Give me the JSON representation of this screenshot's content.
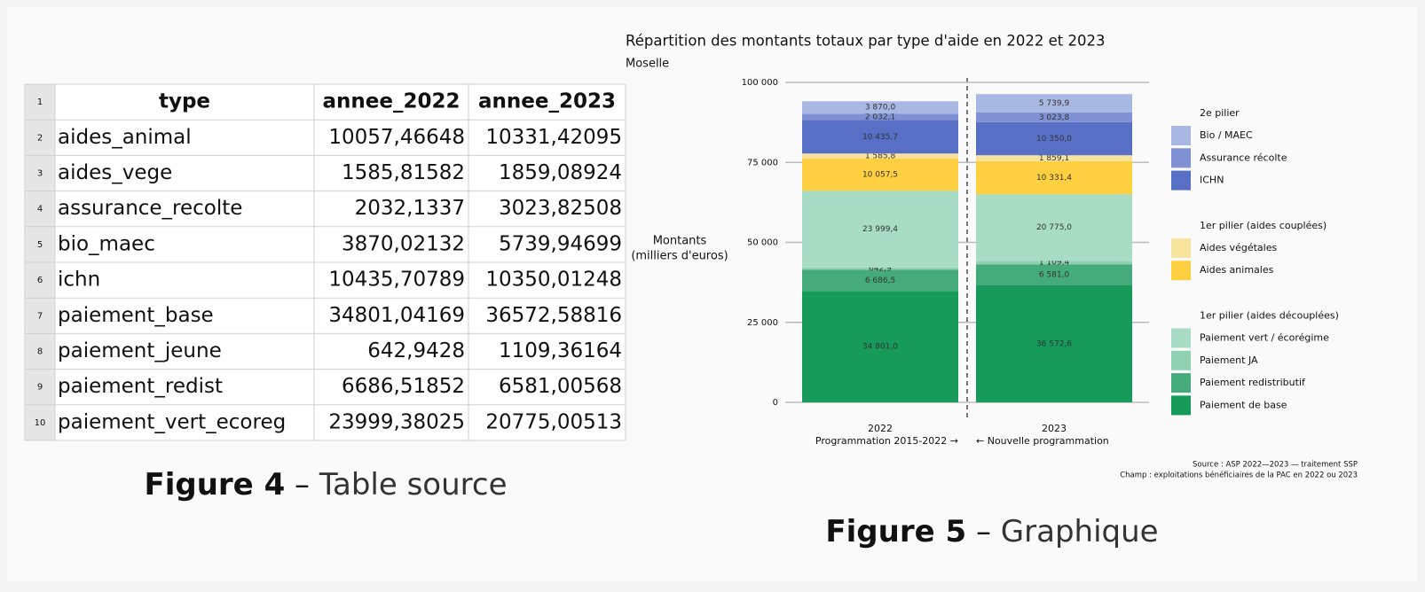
{
  "table": {
    "row_numbers": [
      1,
      2,
      3,
      4,
      5,
      6,
      7,
      8,
      9,
      10
    ],
    "header": [
      "type",
      "annee_2022",
      "annee_2023"
    ],
    "rows": [
      [
        "aides_animal",
        "10057,46648",
        "10331,42095"
      ],
      [
        "aides_vege",
        "1585,81582",
        "1859,08924"
      ],
      [
        "assurance_recolte",
        "2032,1337",
        "3023,82508"
      ],
      [
        "bio_maec",
        "3870,02132",
        "5739,94699"
      ],
      [
        "ichn",
        "10435,70789",
        "10350,01248"
      ],
      [
        "paiement_base",
        "34801,04169",
        "36572,58816"
      ],
      [
        "paiement_jeune",
        "642,9428",
        "1109,36164"
      ],
      [
        "paiement_redist",
        "6686,51852",
        "6581,00568"
      ],
      [
        "paiement_vert_ecoreg",
        "23999,38025",
        "20775,00513"
      ]
    ]
  },
  "figure4": {
    "label": "Figure 4",
    "separator": "–",
    "text": "Table source"
  },
  "chart_data": {
    "type": "bar",
    "stacked": true,
    "title": "Répartition des montants totaux par type d'aide en 2022 et 2023",
    "subtitle": "Moselle",
    "ylabel": [
      "Montants",
      "(milliers d'euros)"
    ],
    "categories": [
      "2022",
      "2023"
    ],
    "category_sublabels": [
      "Programmation 2015-2022 →",
      "← Nouvelle programmation"
    ],
    "ylim": [
      0,
      100000
    ],
    "yticks": [
      0,
      {
        "value": 25000,
        "label": "25 000"
      },
      {
        "value": 50000,
        "label": "50 000"
      },
      {
        "value": 75000,
        "label": "75 000"
      },
      {
        "value": 100000,
        "label": "100 000"
      }
    ],
    "grid": true,
    "series": [
      {
        "name": "Paiement de base",
        "group": "1er pilier (aides découplées)",
        "color": "#169b5a",
        "values": [
          34801.0,
          36572.6
        ],
        "value_labels": [
          "34 801,0",
          "36 572,6"
        ]
      },
      {
        "name": "Paiement redistributif",
        "group": "1er pilier (aides découplées)",
        "color": "#45ab7b",
        "values": [
          6686.5,
          6581.0
        ],
        "value_labels": [
          "6 686,5",
          "6 581,0"
        ]
      },
      {
        "name": "Paiement JA",
        "group": "1er pilier (aides découplées)",
        "color": "#8fd1b2",
        "values": [
          642.9,
          1109.4
        ],
        "value_labels": [
          "642,9",
          "1 109,4"
        ]
      },
      {
        "name": "Paiement vert / écorégime",
        "group": "1er pilier (aides découplées)",
        "color": "#a9dcc4",
        "values": [
          23999.4,
          20775.0
        ],
        "value_labels": [
          "23 999,4",
          "20 775,0"
        ]
      },
      {
        "name": "Aides animales",
        "group": "1er pilier (aides couplées)",
        "color": "#fdcf41",
        "values": [
          10057.5,
          10331.4
        ],
        "value_labels": [
          "10 057,5",
          "10 331,4"
        ]
      },
      {
        "name": "Aides végétales",
        "group": "1er pilier (aides couplées)",
        "color": "#f8e39c",
        "values": [
          1585.8,
          1859.1
        ],
        "value_labels": [
          "1 585,8",
          "1 859,1"
        ]
      },
      {
        "name": "ICHN",
        "group": "2e pilier",
        "color": "#5770c5",
        "values": [
          10435.7,
          10350.0
        ],
        "value_labels": [
          "10 435,7",
          "10 350,0"
        ]
      },
      {
        "name": "Assurance récolte",
        "group": "2e pilier",
        "color": "#7f90d5",
        "values": [
          2032.1,
          3023.8
        ],
        "value_labels": [
          "2 032,1",
          "3 023,8"
        ]
      },
      {
        "name": "Bio / MAEC",
        "group": "2e pilier",
        "color": "#a9b7e3",
        "values": [
          3870.0,
          5739.9
        ],
        "value_labels": [
          "3 870,0",
          "5 739,9"
        ]
      }
    ],
    "notes": [
      "Source : ASP 2022—2023 — traitement SSP",
      "Champ : exploitations bénéficiaires de la PAC en 2022 ou 2023"
    ]
  },
  "figure5": {
    "label": "Figure 5",
    "separator": "–",
    "text": "Graphique"
  }
}
